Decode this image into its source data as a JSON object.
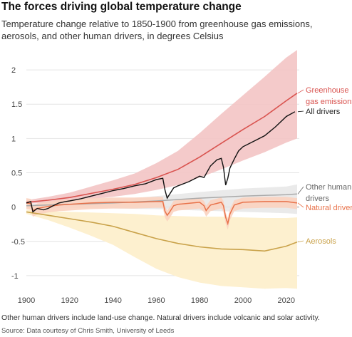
{
  "title": "The forces driving global temperature change",
  "subtitle": "Temperature change relative to 1850-1900 from greenhouse gas emissions, aerosols, and other human drivers, in degrees Celsius",
  "note": "Other human drivers include land-use change. Natural drivers include volcanic and solar activity.",
  "source": "Source: Data courtesy of Chris Smith, University of Leeds",
  "chart_data": {
    "type": "line",
    "xlim": [
      1900,
      2026
    ],
    "ylim": [
      -1.25,
      2.25
    ],
    "x_ticks": [
      "1900",
      "1920",
      "1940",
      "1960",
      "1980",
      "2000",
      "2020"
    ],
    "y_ticks": [
      "2",
      "1.5",
      "1",
      "0.5",
      "0",
      "-0.5",
      "-1"
    ],
    "grid": true,
    "series": [
      {
        "name": "Greenhouse gas emissions",
        "label_lines": [
          "Greenhouse",
          "gas emissions"
        ],
        "color": "#d9534f",
        "band_color": "#f3c4c4",
        "x": [
          1900,
          1910,
          1920,
          1930,
          1940,
          1950,
          1960,
          1970,
          1980,
          1990,
          2000,
          2010,
          2020,
          2025
        ],
        "values": [
          0.07,
          0.1,
          0.14,
          0.2,
          0.26,
          0.33,
          0.43,
          0.55,
          0.73,
          0.93,
          1.13,
          1.32,
          1.55,
          1.66
        ],
        "lower": [
          0.05,
          0.06,
          0.08,
          0.12,
          0.15,
          0.19,
          0.25,
          0.32,
          0.43,
          0.55,
          0.68,
          0.8,
          0.94,
          1.0
        ],
        "upper": [
          0.1,
          0.15,
          0.21,
          0.3,
          0.39,
          0.49,
          0.64,
          0.82,
          1.08,
          1.36,
          1.63,
          1.9,
          2.18,
          2.29
        ]
      },
      {
        "name": "All drivers",
        "color": "#111111",
        "x": [
          1900,
          1902,
          1903,
          1905,
          1908,
          1910,
          1913,
          1915,
          1918,
          1920,
          1925,
          1930,
          1935,
          1940,
          1945,
          1950,
          1955,
          1960,
          1963,
          1964,
          1965,
          1966,
          1968,
          1970,
          1975,
          1980,
          1982,
          1985,
          1988,
          1990,
          1991,
          1992,
          1993,
          1994,
          1996,
          1998,
          2000,
          2005,
          2010,
          2015,
          2020,
          2024
        ],
        "values": [
          0.06,
          0.08,
          -0.07,
          -0.02,
          -0.04,
          -0.02,
          0.03,
          0.06,
          0.08,
          0.09,
          0.12,
          0.16,
          0.2,
          0.24,
          0.27,
          0.31,
          0.34,
          0.4,
          0.42,
          0.25,
          0.13,
          0.18,
          0.28,
          0.31,
          0.37,
          0.45,
          0.43,
          0.6,
          0.69,
          0.71,
          0.58,
          0.32,
          0.42,
          0.57,
          0.7,
          0.82,
          0.88,
          0.96,
          1.04,
          1.17,
          1.32,
          1.39
        ]
      },
      {
        "name": "Other human drivers",
        "color": "#aaaaaa",
        "band_color": "#e8e8e8",
        "x": [
          1900,
          1920,
          1940,
          1960,
          1980,
          2000,
          2020,
          2025
        ],
        "values": [
          0.02,
          0.04,
          0.06,
          0.09,
          0.13,
          0.16,
          0.18,
          0.19
        ],
        "lower": [
          0.0,
          -0.01,
          -0.02,
          -0.03,
          -0.05,
          -0.07,
          -0.09,
          -0.1
        ],
        "upper": [
          0.04,
          0.07,
          0.1,
          0.16,
          0.22,
          0.27,
          0.3,
          0.33
        ]
      },
      {
        "name": "Natural drivers",
        "color": "#e8724a",
        "band_color": "#fbd3c0",
        "x": [
          1900,
          1902,
          1903,
          1905,
          1910,
          1915,
          1920,
          1930,
          1940,
          1950,
          1960,
          1963,
          1964,
          1965,
          1966,
          1968,
          1970,
          1980,
          1982,
          1983,
          1985,
          1990,
          1991,
          1992,
          1993,
          1994,
          1996,
          2000,
          2010,
          2020,
          2025
        ],
        "values": [
          0.06,
          0.05,
          -0.05,
          -0.02,
          0.01,
          0.03,
          0.04,
          0.06,
          0.07,
          0.07,
          0.08,
          0.08,
          -0.06,
          -0.12,
          -0.08,
          0.02,
          0.04,
          0.07,
          0.02,
          -0.05,
          0.03,
          0.07,
          0.02,
          -0.15,
          -0.24,
          -0.1,
          0.03,
          0.07,
          0.08,
          0.08,
          0.06
        ],
        "lower_offset": -0.09,
        "upper_offset": 0.07
      },
      {
        "name": "Aerosols",
        "color": "#c9a24a",
        "band_color": "#fdf0cf",
        "x": [
          1900,
          1910,
          1920,
          1930,
          1940,
          1950,
          1960,
          1970,
          1980,
          1990,
          2000,
          2010,
          2020,
          2025
        ],
        "values": [
          -0.07,
          -0.12,
          -0.17,
          -0.22,
          -0.28,
          -0.37,
          -0.46,
          -0.53,
          -0.58,
          -0.61,
          -0.62,
          -0.64,
          -0.57,
          -0.51
        ],
        "lower": [
          -0.1,
          -0.19,
          -0.3,
          -0.42,
          -0.55,
          -0.73,
          -0.9,
          -1.02,
          -1.1,
          -1.15,
          -1.17,
          -1.19,
          -1.18,
          -1.19
        ],
        "upper": [
          -0.04,
          -0.06,
          -0.07,
          -0.08,
          -0.09,
          -0.1,
          -0.12,
          -0.13,
          -0.14,
          -0.14,
          -0.15,
          -0.16,
          -0.16,
          -0.15
        ]
      }
    ]
  }
}
